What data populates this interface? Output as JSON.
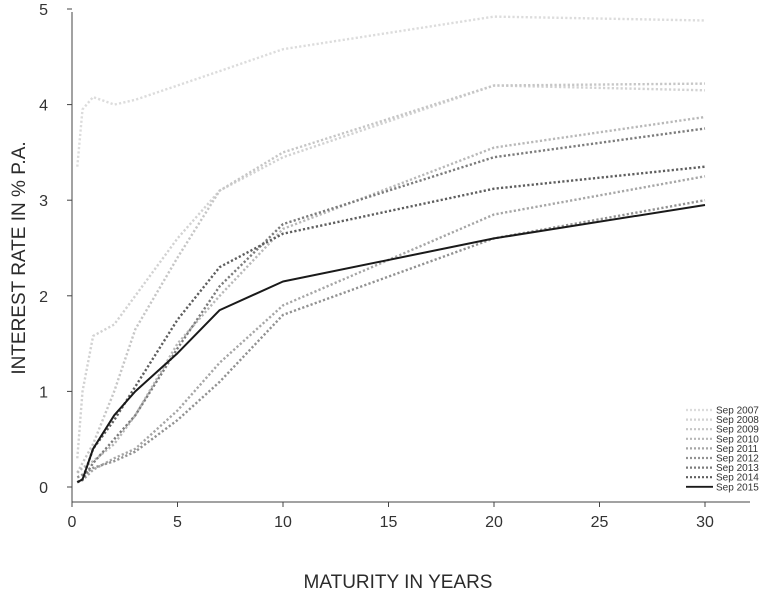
{
  "chart_data": {
    "type": "line",
    "title": "",
    "xlabel": "MATURITY IN YEARS",
    "ylabel": "INTEREST RATE IN % P.A.",
    "xlim": [
      0,
      33
    ],
    "ylim": [
      0,
      5
    ],
    "xticks": [
      "0",
      "5",
      "10",
      "15",
      "20",
      "25",
      "30"
    ],
    "yticks": [
      "0",
      "1",
      "2",
      "3",
      "4",
      "5"
    ],
    "grid": false,
    "legend_position": "bottom-right",
    "series": [
      {
        "name": "Sep 2007",
        "color": "#dcdcdc",
        "style": "dotted",
        "points": [
          [
            0.25,
            3.35
          ],
          [
            0.5,
            3.95
          ],
          [
            1,
            4.08
          ],
          [
            2,
            4.0
          ],
          [
            3,
            4.05
          ],
          [
            5,
            4.2
          ],
          [
            7,
            4.35
          ],
          [
            10,
            4.58
          ],
          [
            20,
            4.92
          ],
          [
            30,
            4.88
          ]
        ]
      },
      {
        "name": "Sep 2008",
        "color": "#d2d2d2",
        "style": "dotted",
        "points": [
          [
            0.25,
            0.3
          ],
          [
            0.5,
            1.0
          ],
          [
            1,
            1.58
          ],
          [
            2,
            1.7
          ],
          [
            3,
            2.0
          ],
          [
            5,
            2.6
          ],
          [
            7,
            3.1
          ],
          [
            10,
            3.45
          ],
          [
            20,
            4.2
          ],
          [
            30,
            4.15
          ]
        ]
      },
      {
        "name": "Sep 2009",
        "color": "#c6c6c6",
        "style": "dotted",
        "points": [
          [
            0.25,
            0.15
          ],
          [
            0.5,
            0.25
          ],
          [
            1,
            0.45
          ],
          [
            2,
            1.0
          ],
          [
            3,
            1.65
          ],
          [
            5,
            2.4
          ],
          [
            7,
            3.1
          ],
          [
            10,
            3.5
          ],
          [
            20,
            4.2
          ],
          [
            30,
            4.22
          ]
        ]
      },
      {
        "name": "Sep 2010",
        "color": "#b8b8b8",
        "style": "dotted",
        "points": [
          [
            0.25,
            0.15
          ],
          [
            0.5,
            0.2
          ],
          [
            1,
            0.27
          ],
          [
            2,
            0.45
          ],
          [
            3,
            0.75
          ],
          [
            5,
            1.5
          ],
          [
            7,
            2.0
          ],
          [
            10,
            2.7
          ],
          [
            20,
            3.55
          ],
          [
            30,
            3.87
          ]
        ]
      },
      {
        "name": "Sep 2011",
        "color": "#a6a6a6",
        "style": "dotted",
        "points": [
          [
            0.25,
            0.05
          ],
          [
            0.5,
            0.07
          ],
          [
            1,
            0.18
          ],
          [
            2,
            0.3
          ],
          [
            3,
            0.4
          ],
          [
            5,
            0.8
          ],
          [
            7,
            1.3
          ],
          [
            10,
            1.9
          ],
          [
            20,
            2.85
          ],
          [
            30,
            3.25
          ]
        ]
      },
      {
        "name": "Sep 2012",
        "color": "#929292",
        "style": "dotted",
        "points": [
          [
            0.25,
            0.1
          ],
          [
            0.5,
            0.13
          ],
          [
            1,
            0.2
          ],
          [
            2,
            0.27
          ],
          [
            3,
            0.37
          ],
          [
            5,
            0.7
          ],
          [
            7,
            1.1
          ],
          [
            10,
            1.8
          ],
          [
            20,
            2.6
          ],
          [
            30,
            3.0
          ]
        ]
      },
      {
        "name": "Sep 2013",
        "color": "#7c7c7c",
        "style": "dotted",
        "points": [
          [
            0.25,
            0.05
          ],
          [
            0.5,
            0.08
          ],
          [
            1,
            0.25
          ],
          [
            2,
            0.5
          ],
          [
            3,
            0.75
          ],
          [
            5,
            1.45
          ],
          [
            7,
            2.1
          ],
          [
            10,
            2.75
          ],
          [
            20,
            3.45
          ],
          [
            30,
            3.75
          ]
        ]
      },
      {
        "name": "Sep 2014",
        "color": "#5e5e5e",
        "style": "dotted",
        "points": [
          [
            0.25,
            0.05
          ],
          [
            0.5,
            0.08
          ],
          [
            1,
            0.4
          ],
          [
            2,
            0.7
          ],
          [
            3,
            1.05
          ],
          [
            5,
            1.75
          ],
          [
            7,
            2.3
          ],
          [
            10,
            2.65
          ],
          [
            20,
            3.12
          ],
          [
            30,
            3.35
          ]
        ]
      },
      {
        "name": "Sep 2015",
        "color": "#1a1a1a",
        "style": "solid",
        "points": [
          [
            0.25,
            0.05
          ],
          [
            0.5,
            0.08
          ],
          [
            1,
            0.4
          ],
          [
            2,
            0.75
          ],
          [
            3,
            1.0
          ],
          [
            5,
            1.4
          ],
          [
            7,
            1.85
          ],
          [
            10,
            2.15
          ],
          [
            20,
            2.6
          ],
          [
            30,
            2.95
          ]
        ]
      }
    ]
  }
}
